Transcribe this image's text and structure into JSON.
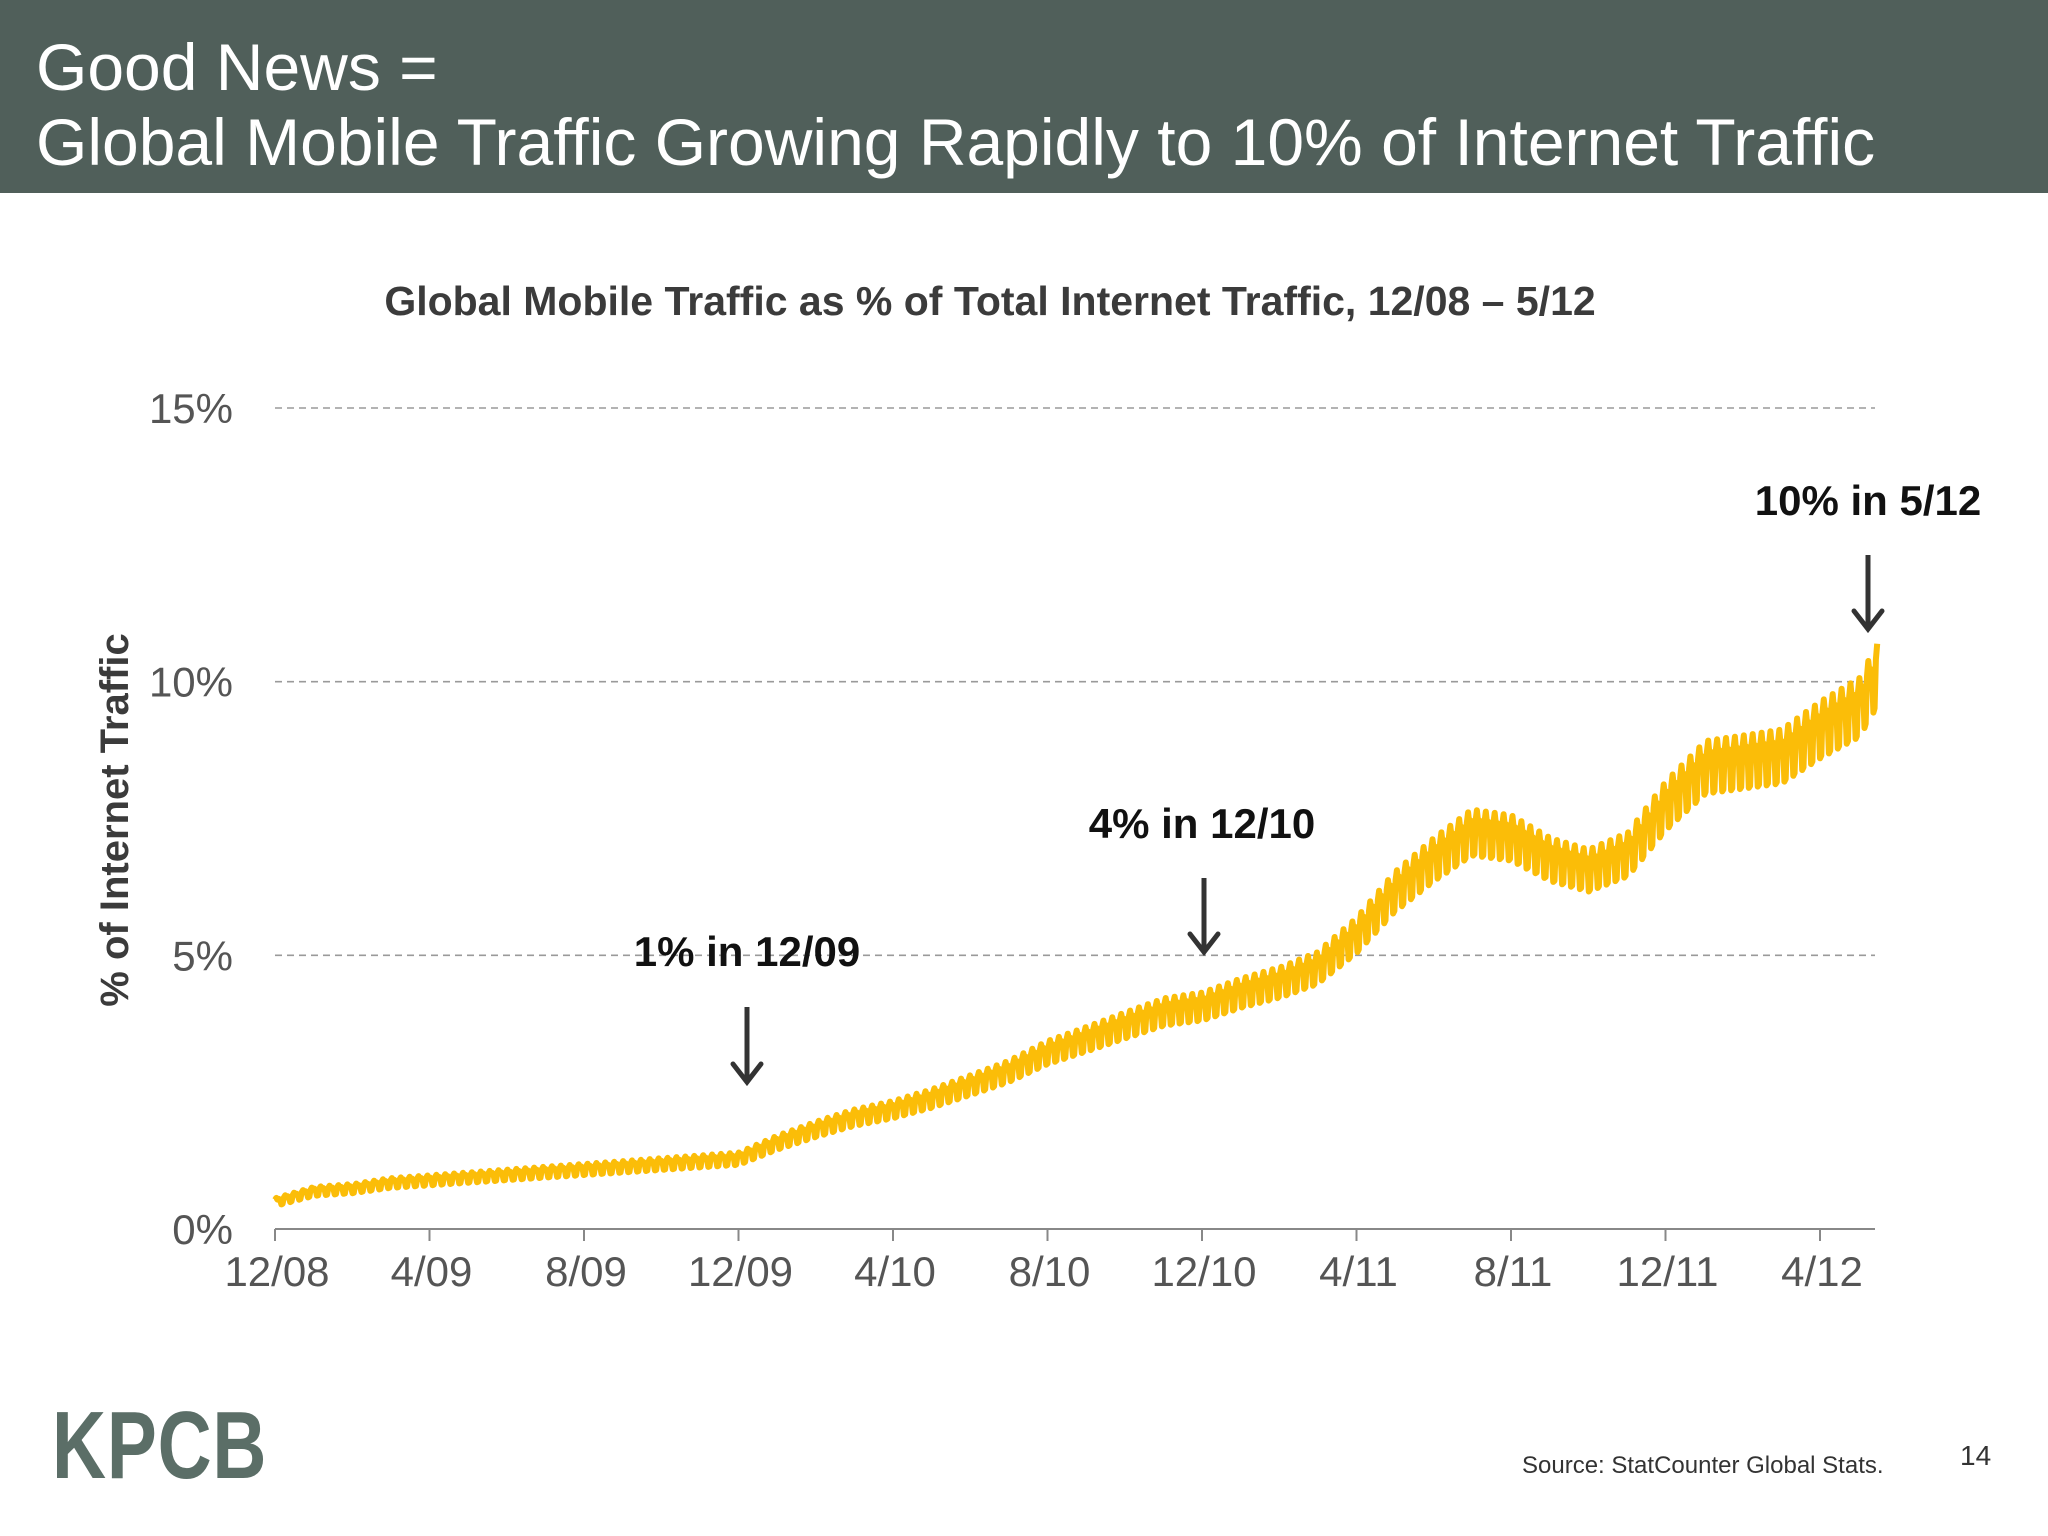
{
  "slide": {
    "title_line_1": "Good News =",
    "title_line_2": "Global Mobile Traffic Growing Rapidly to 10% of Internet Traffic",
    "logo": "KPCB",
    "source": "Source: StatCounter Global Stats.",
    "page_number": "14",
    "colors": {
      "header_bg": "#505f5a",
      "header_text": "#ffffff",
      "series": "#fbbd08",
      "logo": "#5b6e67"
    }
  },
  "chart_data": {
    "type": "line",
    "title": "Global Mobile Traffic as % of Total Internet Traffic, 12/08 – 5/12",
    "ylabel": "% of Internet Traffic",
    "xlabel": "",
    "x_ticks": [
      "12/08",
      "4/09",
      "8/09",
      "12/09",
      "4/10",
      "8/10",
      "12/10",
      "4/11",
      "8/11",
      "12/11",
      "4/12"
    ],
    "y_ticks": [
      "0%",
      "5%",
      "10%",
      "15%"
    ],
    "ylim": [
      0,
      15
    ],
    "xlim": [
      "2008-12-01",
      "2012-05-15"
    ],
    "grid": "horizontal dashed",
    "series": [
      {
        "color": "#fbbd08",
        "x": [
          "2008-12-01",
          "2009-01-01",
          "2009-02-01",
          "2009-03-01",
          "2009-04-01",
          "2009-05-01",
          "2009-06-01",
          "2009-07-01",
          "2009-08-01",
          "2009-09-01",
          "2009-10-01",
          "2009-11-01",
          "2009-12-01",
          "2010-01-01",
          "2010-02-01",
          "2010-03-01",
          "2010-04-01",
          "2010-05-01",
          "2010-06-01",
          "2010-07-01",
          "2010-08-01",
          "2010-09-01",
          "2010-10-01",
          "2010-11-01",
          "2010-12-01",
          "2011-01-01",
          "2011-02-01",
          "2011-03-01",
          "2011-04-01",
          "2011-05-01",
          "2011-06-01",
          "2011-07-01",
          "2011-08-01",
          "2011-09-01",
          "2011-10-01",
          "2011-11-01",
          "2011-12-01",
          "2012-01-01",
          "2012-02-01",
          "2012-03-01",
          "2012-04-01",
          "2012-05-01",
          "2012-05-15"
        ],
        "values": [
          0.5,
          0.7,
          0.75,
          0.85,
          0.9,
          0.95,
          1.0,
          1.05,
          1.1,
          1.15,
          1.2,
          1.25,
          1.3,
          1.6,
          1.85,
          2.05,
          2.2,
          2.4,
          2.65,
          2.9,
          3.25,
          3.5,
          3.75,
          4.0,
          4.1,
          4.35,
          4.55,
          4.8,
          5.4,
          6.2,
          6.8,
          7.3,
          7.2,
          6.8,
          6.6,
          6.9,
          7.8,
          8.5,
          8.6,
          8.7,
          9.2,
          9.6,
          10.2
        ]
      }
    ],
    "annotations": [
      {
        "text": "1% in 12/09",
        "x": "2009-12-01",
        "y": 1.3
      },
      {
        "text": "4% in 12/10",
        "x": "2010-12-01",
        "y": 4.6
      },
      {
        "text": "10% in 5/12",
        "x": "2012-05-01",
        "y": 10.9
      }
    ]
  }
}
